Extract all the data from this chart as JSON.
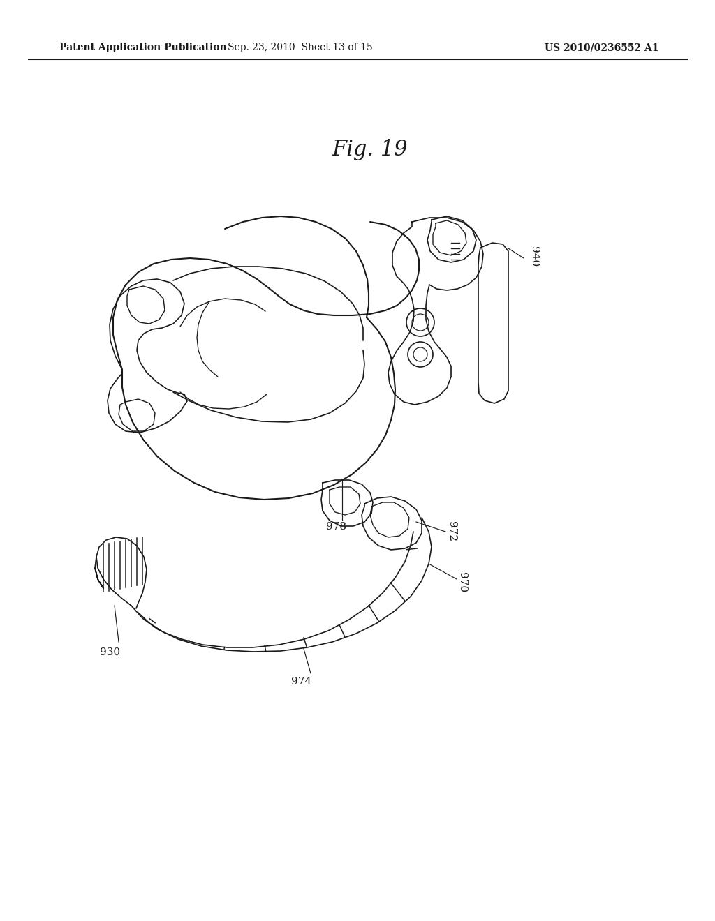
{
  "background_color": "#ffffff",
  "header_left": "Patent Application Publication",
  "header_center": "Sep. 23, 2010  Sheet 13 of 15",
  "header_right": "US 2010/0236552 A1",
  "fig_label": "Fig. 19",
  "reference_numbers": [
    "930",
    "940",
    "970",
    "972",
    "974",
    "978"
  ],
  "line_color": "#1a1a1a",
  "line_width": 1.2,
  "header_fontsize": 10,
  "fig_label_fontsize": 22,
  "ref_fontsize": 11
}
